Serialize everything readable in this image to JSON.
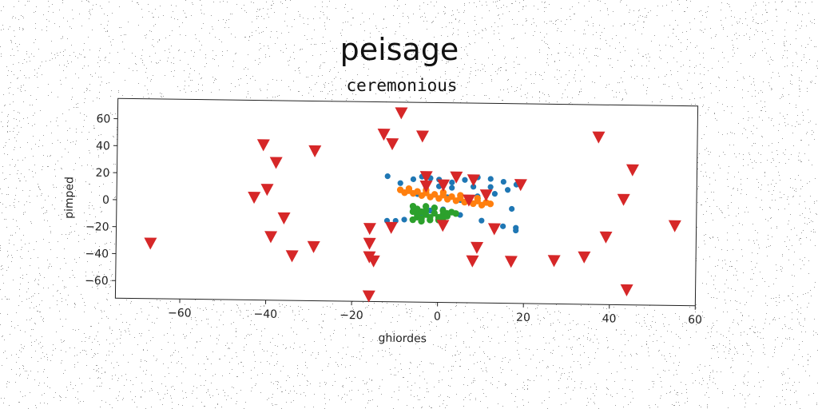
{
  "chart_data": {
    "type": "scatter",
    "title": "peisage",
    "subtitle": "ceremonious",
    "xlabel": "ghiordes",
    "ylabel": "pimped",
    "xlim": [
      -75,
      60
    ],
    "ylim": [
      -73,
      75
    ],
    "xticks": [
      -60,
      -40,
      -20,
      0,
      20,
      40,
      60
    ],
    "yticks": [
      -60,
      -40,
      -20,
      0,
      20,
      40,
      60
    ],
    "grid": false,
    "legend": "none",
    "series": [
      {
        "marker": "circle",
        "color": "#1f77b4",
        "points": [
          [
            -12,
            20
          ],
          [
            -9,
            15
          ],
          [
            -6,
            18
          ],
          [
            -4,
            20
          ],
          [
            -2,
            19
          ],
          [
            0,
            18
          ],
          [
            3,
            16
          ],
          [
            6,
            18
          ],
          [
            9,
            20
          ],
          [
            12,
            19
          ],
          [
            15,
            17
          ],
          [
            18,
            15
          ],
          [
            -3,
            11
          ],
          [
            0,
            13
          ],
          [
            3,
            12
          ],
          [
            8,
            13
          ],
          [
            12,
            13
          ],
          [
            16,
            11
          ],
          [
            -5,
            7
          ],
          [
            -1,
            7
          ],
          [
            2,
            5
          ],
          [
            5,
            3
          ],
          [
            9,
            6
          ],
          [
            13,
            8
          ],
          [
            17,
            -3
          ],
          [
            5,
            -8
          ],
          [
            10,
            -12
          ],
          [
            15,
            -16
          ],
          [
            18,
            -17
          ],
          [
            18,
            -19
          ],
          [
            -12,
            -13
          ],
          [
            -10,
            -13
          ],
          [
            -8,
            -12
          ],
          [
            -4,
            -7
          ],
          [
            -2,
            -5
          ],
          [
            1,
            -4
          ],
          [
            -6,
            -3
          ]
        ]
      },
      {
        "marker": "circle",
        "color": "#ff7f0e",
        "points": [
          [
            -9,
            10
          ],
          [
            -7,
            9.5
          ],
          [
            -5,
            9
          ],
          [
            -3,
            8
          ],
          [
            -1,
            7
          ],
          [
            1,
            6.5
          ],
          [
            3,
            5.5
          ],
          [
            5,
            4.5
          ],
          [
            7,
            3.5
          ],
          [
            9,
            2.5
          ],
          [
            11,
            1.5
          ],
          [
            12,
            0.5
          ],
          [
            -8,
            8
          ],
          [
            -6,
            7.5
          ],
          [
            -4,
            6
          ],
          [
            -2,
            5
          ],
          [
            0,
            4
          ],
          [
            2,
            3.5
          ],
          [
            4,
            2.5
          ],
          [
            6,
            1.5
          ],
          [
            8,
            0.5
          ],
          [
            10,
            -0.5
          ],
          [
            -7,
            11
          ],
          [
            -3,
            10
          ],
          [
            1,
            8.5
          ],
          [
            5,
            6.5
          ],
          [
            9,
            4.5
          ]
        ]
      },
      {
        "marker": "circle",
        "color": "#2ca02c",
        "points": [
          [
            -6,
            -2
          ],
          [
            -5,
            -4
          ],
          [
            -4,
            -6
          ],
          [
            -3,
            -8
          ],
          [
            -2,
            -10
          ],
          [
            -5,
            -10
          ],
          [
            -6,
            -12
          ],
          [
            -4,
            -13
          ],
          [
            -2,
            -12
          ],
          [
            0,
            -10
          ],
          [
            1,
            -8
          ],
          [
            2,
            -7
          ],
          [
            3,
            -6
          ],
          [
            1,
            -5
          ],
          [
            -1,
            -3
          ],
          [
            -3,
            -2
          ],
          [
            -5,
            -8
          ],
          [
            -4,
            -11
          ],
          [
            -1,
            -7
          ],
          [
            2,
            -9
          ],
          [
            0,
            -12
          ],
          [
            -6,
            -6
          ],
          [
            -3,
            -5
          ],
          [
            1,
            -11
          ],
          [
            4,
            -7
          ]
        ]
      },
      {
        "marker": "triangle-down",
        "color": "#d62728",
        "points": [
          [
            -67,
            -32
          ],
          [
            -41,
            42
          ],
          [
            -38,
            29
          ],
          [
            -29,
            38
          ],
          [
            -43,
            3
          ],
          [
            -40,
            9
          ],
          [
            -36,
            -12
          ],
          [
            -39,
            -26
          ],
          [
            -34,
            -40
          ],
          [
            -29,
            -33
          ],
          [
            -13,
            51
          ],
          [
            -9,
            67
          ],
          [
            -11,
            44
          ],
          [
            -4,
            50
          ],
          [
            -16,
            -19
          ],
          [
            -16,
            -30
          ],
          [
            -16,
            -40
          ],
          [
            -15,
            -43
          ],
          [
            -16,
            -69
          ],
          [
            -11,
            -18
          ],
          [
            -3,
            20
          ],
          [
            -3,
            13
          ],
          [
            1,
            14
          ],
          [
            4,
            20
          ],
          [
            8,
            18
          ],
          [
            11,
            7
          ],
          [
            7,
            3
          ],
          [
            19,
            15
          ],
          [
            1,
            -16
          ],
          [
            8,
            -42
          ],
          [
            9,
            -32
          ],
          [
            13,
            -18
          ],
          [
            17,
            -42
          ],
          [
            27,
            -41
          ],
          [
            34,
            -38
          ],
          [
            37,
            51
          ],
          [
            39,
            -23
          ],
          [
            43,
            5
          ],
          [
            45,
            27
          ],
          [
            44,
            -62
          ],
          [
            55,
            -14
          ]
        ]
      }
    ]
  }
}
